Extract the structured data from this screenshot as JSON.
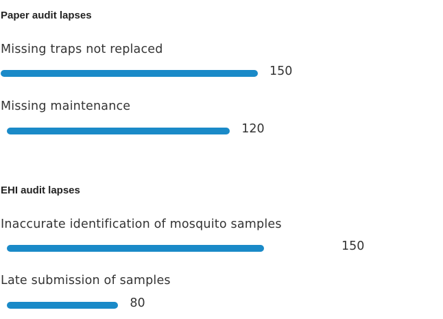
{
  "colors": {
    "bar": "#1a8ac8",
    "text": "#333333"
  },
  "chart_data": {
    "type": "bar",
    "orientation": "horizontal",
    "groups": [
      {
        "title": "Paper audit lapses",
        "categories": [
          "Missing traps not replaced",
          "Missing maintenance"
        ],
        "values": [
          150,
          120
        ]
      },
      {
        "title": "EHI audit lapses",
        "categories": [
          "Inaccurate identification of mosquito samples",
          "Late submission of samples"
        ],
        "values": [
          150,
          80
        ]
      }
    ]
  }
}
